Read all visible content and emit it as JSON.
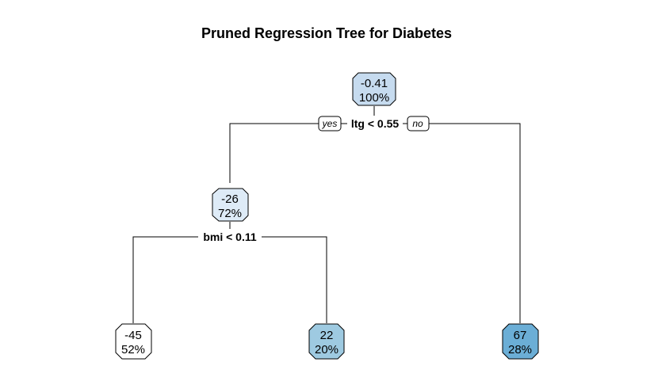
{
  "title": "Pruned Regression Tree for Diabetes",
  "branch_labels": {
    "yes": "yes",
    "no": "no"
  },
  "nodes": {
    "root": {
      "value": "-0.41",
      "percent": "100%",
      "color": "#c6dbef"
    },
    "left": {
      "value": "-26",
      "percent": "72%",
      "color": "#deebf7"
    },
    "leaf1": {
      "value": "-45",
      "percent": "52%",
      "color": "#ffffff"
    },
    "leaf2": {
      "value": "22",
      "percent": "20%",
      "color": "#9ecae1"
    },
    "leaf3": {
      "value": "67",
      "percent": "28%",
      "color": "#6baed6"
    }
  },
  "splits": {
    "root": "ltg < 0.55",
    "left": "bmi < 0.11"
  }
}
